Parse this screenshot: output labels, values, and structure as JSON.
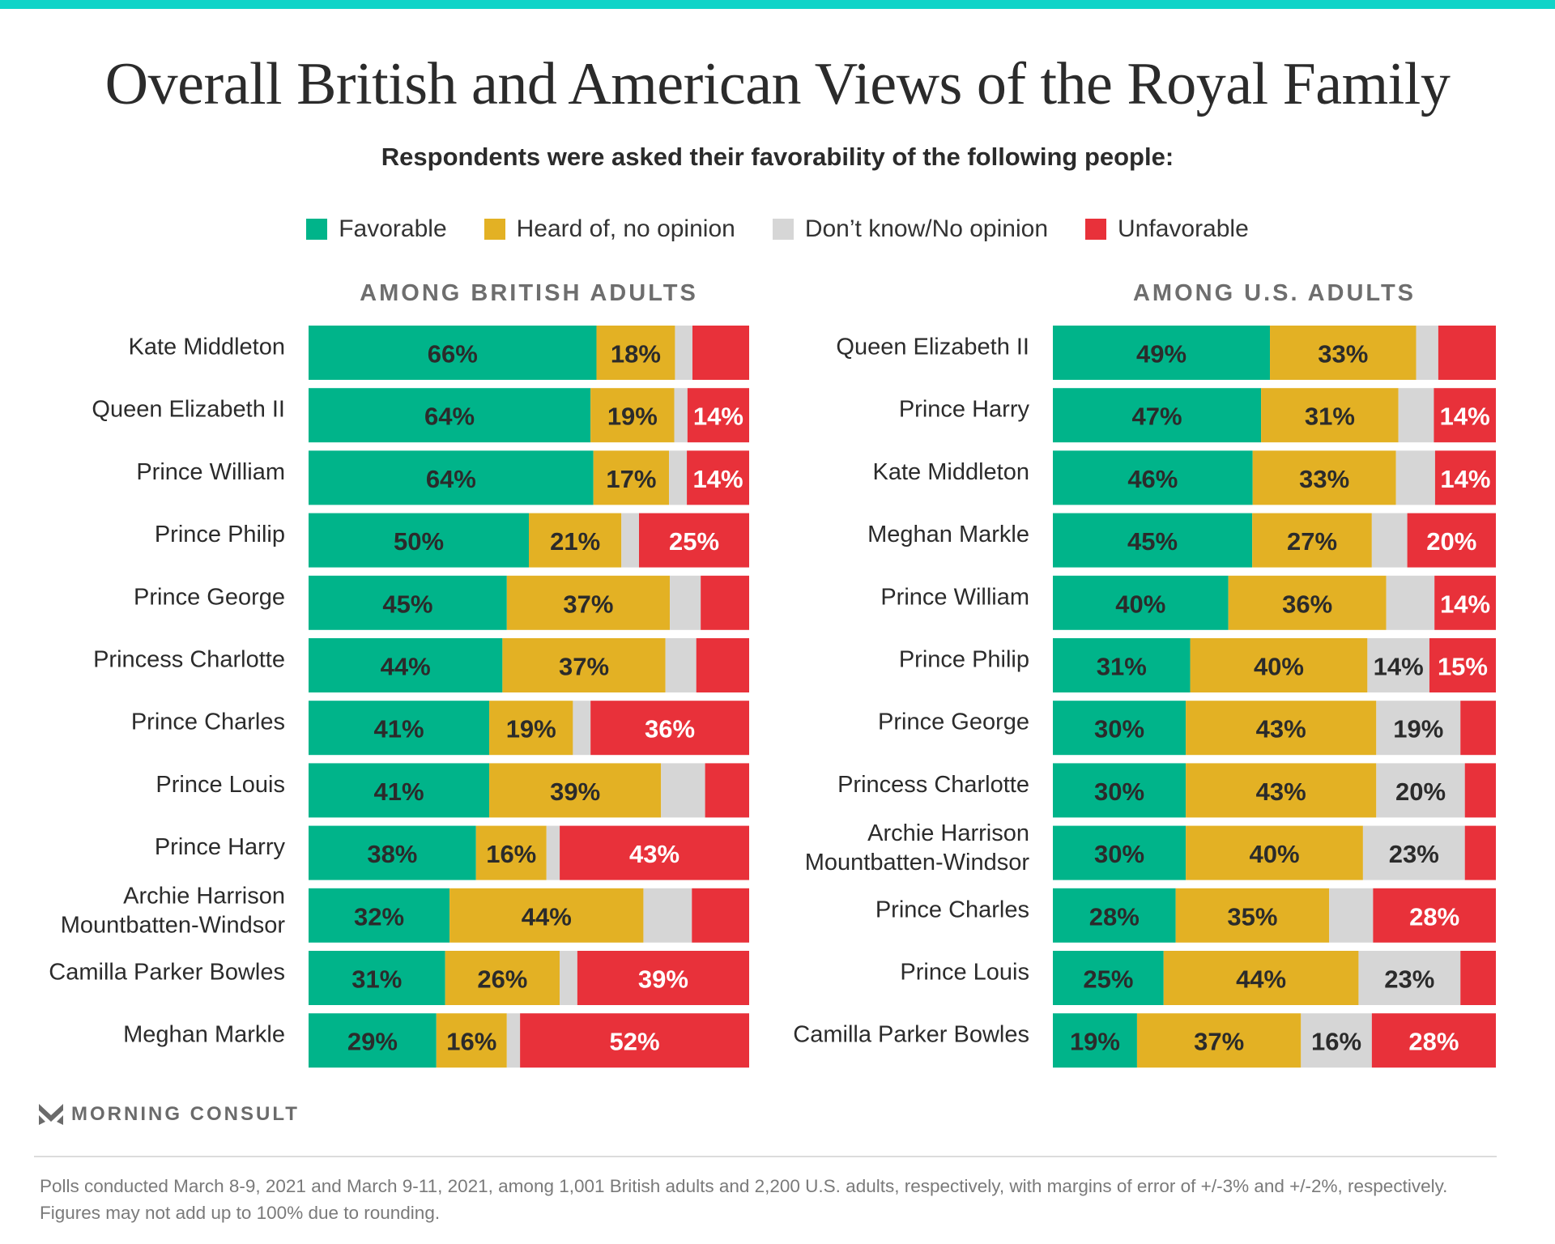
{
  "title": "Overall British and American Views of the Royal Family",
  "subtitle": "Respondents were asked their favorability of the following people:",
  "legend": [
    {
      "label": "Favorable",
      "color": "#00b48a"
    },
    {
      "label": "Heard of, no opinion",
      "color": "#e3b124"
    },
    {
      "label": "Don’t know/No opinion",
      "color": "#d6d6d6"
    },
    {
      "label": "Unfavorable",
      "color": "#e8313a"
    }
  ],
  "brand": "MORNING CONSULT",
  "note": "Polls conducted March 8-9, 2021 and March 9-11, 2021, among 1,001 British adults and 2,200 U.S. adults, respectively, with margins of error of +/-3% and +/-2%, respectively. Figures may not add up to 100% due to rounding.",
  "chart_data": [
    {
      "type": "bar",
      "orientation": "horizontal-stacked",
      "title": "AMONG BRITISH ADULTS",
      "series_names": [
        "Favorable",
        "Heard of, no opinion",
        "Don’t know/No opinion",
        "Unfavorable"
      ],
      "categories": [
        "Kate Middleton",
        "Queen Elizabeth II",
        "Prince William",
        "Prince Philip",
        "Prince George",
        "Princess Charlotte",
        "Prince Charles",
        "Prince Louis",
        "Prince Harry",
        "Archie Harrison Mountbatten-Windsor",
        "Camilla Parker Bowles",
        "Meghan Markle"
      ],
      "series": [
        {
          "name": "Favorable",
          "values": [
            66,
            64,
            64,
            50,
            45,
            44,
            41,
            41,
            38,
            32,
            31,
            29
          ],
          "labeled": [
            true,
            true,
            true,
            true,
            true,
            true,
            true,
            true,
            true,
            true,
            true,
            true
          ]
        },
        {
          "name": "Heard of, no opinion",
          "values": [
            18,
            19,
            17,
            21,
            37,
            37,
            19,
            39,
            16,
            44,
            26,
            16
          ],
          "labeled": [
            true,
            true,
            true,
            true,
            true,
            true,
            true,
            true,
            true,
            true,
            true,
            true
          ]
        },
        {
          "name": "Don’t know/No opinion",
          "values": [
            4,
            3,
            4,
            4,
            7,
            7,
            4,
            10,
            3,
            11,
            4,
            3
          ],
          "labeled": [
            false,
            false,
            false,
            false,
            false,
            false,
            false,
            false,
            false,
            false,
            false,
            false
          ]
        },
        {
          "name": "Unfavorable",
          "values": [
            13,
            14,
            14,
            25,
            11,
            12,
            36,
            10,
            43,
            13,
            39,
            52
          ],
          "labeled": [
            false,
            true,
            true,
            true,
            false,
            false,
            true,
            false,
            true,
            false,
            true,
            true
          ]
        }
      ],
      "xlim": [
        0,
        100
      ]
    },
    {
      "type": "bar",
      "orientation": "horizontal-stacked",
      "title": "AMONG U.S. ADULTS",
      "series_names": [
        "Favorable",
        "Heard of, no opinion",
        "Don’t know/No opinion",
        "Unfavorable"
      ],
      "categories": [
        "Queen Elizabeth II",
        "Prince Harry",
        "Kate Middleton",
        "Meghan Markle",
        "Prince William",
        "Prince Philip",
        "Prince George",
        "Princess Charlotte",
        "Archie Harrison Mountbatten-Windsor",
        "Prince Charles",
        "Prince Louis",
        "Camilla Parker Bowles"
      ],
      "series": [
        {
          "name": "Favorable",
          "values": [
            49,
            47,
            46,
            45,
            40,
            31,
            30,
            30,
            30,
            28,
            25,
            19
          ],
          "labeled": [
            true,
            true,
            true,
            true,
            true,
            true,
            true,
            true,
            true,
            true,
            true,
            true
          ]
        },
        {
          "name": "Heard of, no opinion",
          "values": [
            33,
            31,
            33,
            27,
            36,
            40,
            43,
            43,
            40,
            35,
            44,
            37
          ],
          "labeled": [
            true,
            true,
            true,
            true,
            true,
            true,
            true,
            true,
            true,
            true,
            true,
            true
          ]
        },
        {
          "name": "Don’t know/No opinion",
          "values": [
            5,
            8,
            9,
            8,
            11,
            14,
            19,
            20,
            23,
            10,
            23,
            16
          ],
          "labeled": [
            false,
            false,
            false,
            false,
            false,
            true,
            true,
            true,
            true,
            false,
            true,
            true
          ]
        },
        {
          "name": "Unfavorable",
          "values": [
            13,
            14,
            14,
            20,
            14,
            15,
            8,
            7,
            7,
            28,
            8,
            28
          ],
          "labeled": [
            false,
            true,
            true,
            true,
            true,
            true,
            false,
            false,
            false,
            true,
            false,
            true
          ]
        }
      ],
      "xlim": [
        0,
        100
      ]
    }
  ]
}
